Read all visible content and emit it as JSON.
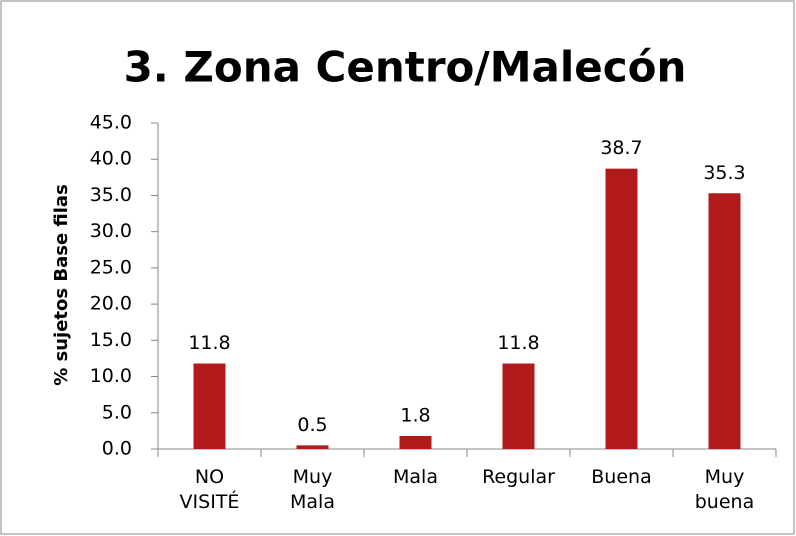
{
  "chart_data": {
    "type": "bar",
    "title": "3. Zona Centro/Malecón",
    "y_label": "% sujetos Base filas",
    "categories": [
      "NO VISITÉ",
      "Muy Mala",
      "Mala",
      "Regular",
      "Buena",
      "Muy buena"
    ],
    "values": [
      11.8,
      0.5,
      1.8,
      11.8,
      38.7,
      35.3
    ],
    "color": "#b01a1a",
    "ylim": [
      0,
      45
    ],
    "yticks": [
      {
        "value": 0,
        "label": "0.0"
      },
      {
        "value": 5,
        "label": "5.0"
      },
      {
        "value": 10,
        "label": "10.0"
      },
      {
        "value": 15,
        "label": "15.0"
      },
      {
        "value": 20,
        "label": "20.0"
      },
      {
        "value": 25,
        "label": "25.0"
      },
      {
        "value": 30,
        "label": "30.0"
      },
      {
        "value": 35,
        "label": "35.0"
      },
      {
        "value": 40,
        "label": "40.0"
      },
      {
        "value": 45,
        "label": "45.0"
      }
    ],
    "grid": false
  }
}
